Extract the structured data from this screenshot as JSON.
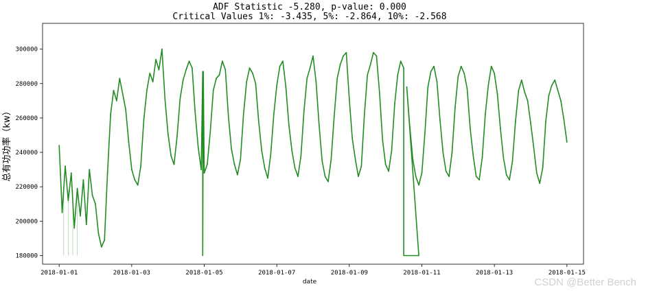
{
  "chart_data": {
    "type": "line",
    "title": "ADF Statistic -5.280, p-value: 0.000",
    "subtitle": "Critical Values 1%: -3.435, 5%: -2.864, 10%: -2.568",
    "xlabel": "date",
    "ylabel": "总有功功率（kw）",
    "xlim": [
      "2017-12-31T13:00",
      "2018-01-15T11:00"
    ],
    "ylim": [
      175000,
      315000
    ],
    "x_ticks": [
      "2018-01-01",
      "2018-01-03",
      "2018-01-05",
      "2018-01-07",
      "2018-01-09",
      "2018-01-11",
      "2018-01-13",
      "2018-01-15"
    ],
    "y_ticks": [
      180000,
      200000,
      220000,
      240000,
      260000,
      280000,
      300000
    ],
    "grid": false,
    "series": [
      {
        "color": "#228b22",
        "x": [
          "2018-01-01T00:00",
          "2018-01-01T02:00",
          "2018-01-01T04:00",
          "2018-01-01T06:00",
          "2018-01-01T08:00",
          "2018-01-01T10:00",
          "2018-01-01T12:00",
          "2018-01-01T14:00",
          "2018-01-01T16:00",
          "2018-01-01T18:00",
          "2018-01-01T20:00",
          "2018-01-01T22:00",
          "2018-01-02T00:00",
          "2018-01-02T02:00",
          "2018-01-02T04:00",
          "2018-01-02T06:00",
          "2018-01-02T08:00",
          "2018-01-02T10:00",
          "2018-01-02T12:00",
          "2018-01-02T14:00",
          "2018-01-02T16:00",
          "2018-01-02T18:00",
          "2018-01-02T20:00",
          "2018-01-02T22:00",
          "2018-01-03T00:00",
          "2018-01-03T02:00",
          "2018-01-03T04:00",
          "2018-01-03T06:00",
          "2018-01-03T08:00",
          "2018-01-03T10:00",
          "2018-01-03T12:00",
          "2018-01-03T14:00",
          "2018-01-03T16:00",
          "2018-01-03T18:00",
          "2018-01-03T20:00",
          "2018-01-03T22:00",
          "2018-01-04T00:00",
          "2018-01-04T02:00",
          "2018-01-04T04:00",
          "2018-01-04T06:00",
          "2018-01-04T08:00",
          "2018-01-04T10:00",
          "2018-01-04T12:00",
          "2018-01-04T14:00",
          "2018-01-04T16:00",
          "2018-01-04T18:00",
          "2018-01-04T20:00",
          "2018-01-04T22:00",
          "2018-01-05T00:00",
          "2018-01-05T02:00",
          "2018-01-05T04:00",
          "2018-01-05T06:00",
          "2018-01-05T08:00",
          "2018-01-05T10:00",
          "2018-01-05T12:00",
          "2018-01-05T14:00",
          "2018-01-05T16:00",
          "2018-01-05T18:00",
          "2018-01-05T20:00",
          "2018-01-05T22:00",
          "2018-01-06T00:00",
          "2018-01-06T02:00",
          "2018-01-06T04:00",
          "2018-01-06T06:00",
          "2018-01-06T08:00",
          "2018-01-06T10:00",
          "2018-01-06T12:00",
          "2018-01-06T14:00",
          "2018-01-06T16:00",
          "2018-01-06T18:00",
          "2018-01-06T20:00",
          "2018-01-06T22:00",
          "2018-01-07T00:00",
          "2018-01-07T02:00",
          "2018-01-07T04:00",
          "2018-01-07T06:00",
          "2018-01-07T08:00",
          "2018-01-07T10:00",
          "2018-01-07T12:00",
          "2018-01-07T14:00",
          "2018-01-07T16:00",
          "2018-01-07T18:00",
          "2018-01-07T20:00",
          "2018-01-07T22:00",
          "2018-01-08T00:00",
          "2018-01-08T02:00",
          "2018-01-08T04:00",
          "2018-01-08T06:00",
          "2018-01-08T08:00",
          "2018-01-08T10:00",
          "2018-01-08T12:00",
          "2018-01-08T14:00",
          "2018-01-08T16:00",
          "2018-01-08T18:00",
          "2018-01-08T20:00",
          "2018-01-08T22:00",
          "2018-01-09T00:00",
          "2018-01-09T02:00",
          "2018-01-09T04:00",
          "2018-01-09T06:00",
          "2018-01-09T08:00",
          "2018-01-09T10:00",
          "2018-01-09T12:00",
          "2018-01-09T14:00",
          "2018-01-09T16:00",
          "2018-01-09T18:00",
          "2018-01-09T20:00",
          "2018-01-09T22:00",
          "2018-01-10T00:00",
          "2018-01-10T02:00",
          "2018-01-10T04:00",
          "2018-01-10T06:00",
          "2018-01-10T08:00",
          "2018-01-10T10:00",
          "2018-01-10T12:00",
          "2018-01-10T14:00",
          "2018-01-10T16:00",
          "2018-01-10T18:00",
          "2018-01-10T20:00",
          "2018-01-10T22:00",
          "2018-01-11T00:00",
          "2018-01-11T02:00",
          "2018-01-11T04:00",
          "2018-01-11T06:00",
          "2018-01-11T08:00",
          "2018-01-11T10:00",
          "2018-01-11T12:00",
          "2018-01-11T14:00",
          "2018-01-11T16:00",
          "2018-01-11T18:00",
          "2018-01-11T20:00",
          "2018-01-11T22:00",
          "2018-01-12T00:00",
          "2018-01-12T02:00",
          "2018-01-12T04:00",
          "2018-01-12T06:00",
          "2018-01-12T08:00",
          "2018-01-12T10:00",
          "2018-01-12T12:00",
          "2018-01-12T14:00",
          "2018-01-12T16:00",
          "2018-01-12T18:00",
          "2018-01-12T20:00",
          "2018-01-12T22:00",
          "2018-01-13T00:00",
          "2018-01-13T02:00",
          "2018-01-13T04:00",
          "2018-01-13T06:00",
          "2018-01-13T08:00",
          "2018-01-13T10:00",
          "2018-01-13T12:00",
          "2018-01-13T14:00",
          "2018-01-13T16:00",
          "2018-01-13T18:00",
          "2018-01-13T20:00",
          "2018-01-13T22:00",
          "2018-01-14T00:00",
          "2018-01-14T02:00",
          "2018-01-14T04:00",
          "2018-01-14T06:00",
          "2018-01-14T08:00",
          "2018-01-14T10:00",
          "2018-01-14T12:00",
          "2018-01-14T14:00",
          "2018-01-14T16:00",
          "2018-01-14T18:00",
          "2018-01-14T20:00",
          "2018-01-14T22:00",
          "2018-01-15T00:00"
        ],
        "values": [
          244000,
          205000,
          232000,
          212000,
          228000,
          196000,
          219000,
          203000,
          224000,
          198000,
          230000,
          215000,
          210000,
          193000,
          185000,
          189000,
          228000,
          262000,
          276000,
          270000,
          283000,
          274000,
          265000,
          246000,
          230000,
          224000,
          221000,
          232000,
          259000,
          276000,
          286000,
          281000,
          294000,
          288000,
          300000,
          271000,
          251000,
          238000,
          233000,
          249000,
          271000,
          282000,
          288000,
          293000,
          289000,
          263000,
          243000,
          230000,
          228000,
          233000,
          252000,
          276000,
          283000,
          285000,
          293000,
          288000,
          261000,
          242000,
          233000,
          227000,
          236000,
          262000,
          281000,
          289000,
          286000,
          280000,
          258000,
          241000,
          231000,
          225000,
          239000,
          262000,
          279000,
          290000,
          293000,
          278000,
          256000,
          241000,
          231000,
          226000,
          238000,
          264000,
          283000,
          289000,
          296000,
          281000,
          256000,
          235000,
          226000,
          223000,
          236000,
          261000,
          283000,
          291000,
          296000,
          298000,
          271000,
          248000,
          236000,
          226000,
          232000,
          262000,
          285000,
          291000,
          298000,
          296000,
          275000,
          247000,
          233000,
          229000,
          241000,
          268000,
          285000,
          293000,
          289000,
          278000,
          255000,
          236000,
          226000,
          221000,
          228000,
          251000,
          278000,
          287000,
          290000,
          281000,
          259000,
          240000,
          229000,
          226000,
          240000,
          266000,
          284000,
          290000,
          286000,
          277000,
          254000,
          238000,
          226000,
          224000,
          237000,
          262000,
          279000,
          290000,
          286000,
          274000,
          254000,
          237000,
          227000,
          224000,
          235000,
          258000,
          276000,
          282000,
          275000,
          270000,
          257000,
          243000,
          228000,
          222000,
          231000,
          258000,
          273000,
          279000,
          282000,
          276000,
          270000,
          259000,
          246000
        ]
      }
    ],
    "annotations": [
      {
        "type": "drop",
        "x": "2018-01-04T23:00",
        "from": 287000,
        "to": 180000
      },
      {
        "type": "flat-gap",
        "from_x": "2018-01-10T12:00",
        "to_x": "2018-01-10T22:00",
        "from_value": 230000,
        "level": 180000
      },
      {
        "type": "thin-spikes",
        "x": [
          "2018-01-01T03:00",
          "2018-01-01T06:00",
          "2018-01-01T09:00",
          "2018-01-01T12:00"
        ],
        "to": 180000
      }
    ]
  },
  "watermark": "CSDN @Better Bench"
}
